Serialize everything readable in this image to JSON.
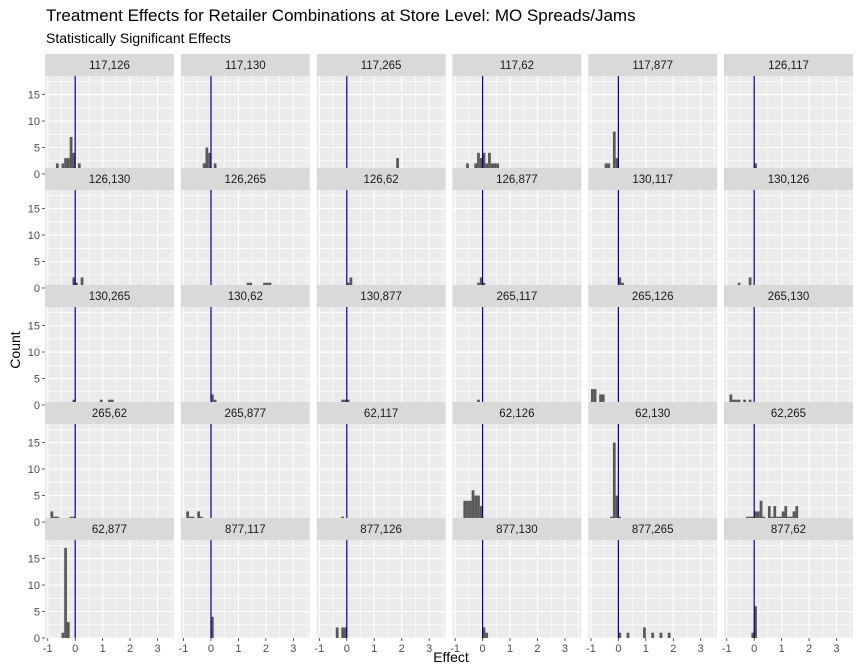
{
  "title": "Treatment Effects for Retailer Combinations at Store Level: MO Spreads/Jams",
  "subtitle": "Statistically Significant Effects",
  "colors": {
    "panel_bg": "#ebebeb",
    "strip_bg": "#d9d9d9",
    "grid": "#ffffff",
    "bar": "#595959",
    "vline": "#00008b"
  },
  "chart_data": {
    "type": "bar",
    "title": "Treatment Effects for Retailer Combinations at Store Level: MO Spreads/Jams",
    "subtitle": "Statistically Significant Effects",
    "xlabel": "Effect",
    "ylabel": "Count",
    "xlim": [
      -1.1,
      3.6
    ],
    "ylim": [
      0,
      18.5
    ],
    "xticks": [
      -1,
      0,
      1,
      2,
      3
    ],
    "yticks": [
      0,
      5,
      10,
      15
    ],
    "grid": true,
    "bin_width": 0.1,
    "reference_line_x": 0,
    "panels": [
      {
        "label": "117,126",
        "bars": [
          [
            -0.65,
            2
          ],
          [
            -0.45,
            2
          ],
          [
            -0.35,
            3
          ],
          [
            -0.25,
            3
          ],
          [
            -0.15,
            7
          ],
          [
            -0.05,
            4
          ],
          [
            0.05,
            1
          ],
          [
            0.15,
            2
          ],
          [
            0.25,
            1
          ],
          [
            0.45,
            1
          ]
        ]
      },
      {
        "label": "117,130",
        "bars": [
          [
            -0.85,
            1
          ],
          [
            -0.45,
            1
          ],
          [
            -0.25,
            2
          ],
          [
            -0.15,
            5
          ],
          [
            -0.05,
            4
          ],
          [
            0.05,
            1
          ],
          [
            0.15,
            2
          ],
          [
            0.25,
            1
          ],
          [
            0.45,
            1
          ],
          [
            0.55,
            1
          ],
          [
            0.75,
            1
          ]
        ]
      },
      {
        "label": "117,265",
        "bars": [
          [
            -0.25,
            1
          ],
          [
            -0.15,
            1
          ],
          [
            0.35,
            1
          ],
          [
            0.75,
            1
          ],
          [
            1.25,
            1
          ],
          [
            1.35,
            1
          ],
          [
            1.75,
            1
          ],
          [
            1.85,
            3
          ],
          [
            1.95,
            1
          ],
          [
            2.45,
            1
          ],
          [
            2.55,
            1
          ],
          [
            2.75,
            1
          ],
          [
            3.35,
            1
          ]
        ]
      },
      {
        "label": "117,62",
        "bars": [
          [
            -0.85,
            1
          ],
          [
            -0.55,
            2
          ],
          [
            -0.25,
            2
          ],
          [
            -0.15,
            4
          ],
          [
            -0.05,
            3
          ],
          [
            0.05,
            4
          ],
          [
            0.15,
            2
          ],
          [
            0.25,
            4
          ],
          [
            0.35,
            2
          ],
          [
            0.45,
            2
          ],
          [
            0.55,
            2
          ],
          [
            0.65,
            1
          ]
        ]
      },
      {
        "label": "117,877",
        "bars": [
          [
            -0.85,
            1
          ],
          [
            -0.75,
            1
          ],
          [
            -0.65,
            1
          ],
          [
            -0.55,
            1
          ],
          [
            -0.45,
            2
          ],
          [
            -0.35,
            2
          ],
          [
            -0.25,
            1
          ],
          [
            -0.15,
            8
          ],
          [
            -0.05,
            3
          ],
          [
            0.05,
            1
          ],
          [
            0.25,
            1
          ],
          [
            0.35,
            1
          ]
        ]
      },
      {
        "label": "126,117",
        "bars": [
          [
            0.05,
            2
          ],
          [
            0.15,
            1
          ]
        ]
      },
      {
        "label": "126,130",
        "bars": [
          [
            -0.05,
            2
          ],
          [
            0.05,
            1
          ],
          [
            0.25,
            2
          ]
        ]
      },
      {
        "label": "126,265",
        "bars": [
          [
            1.35,
            1
          ],
          [
            1.45,
            1
          ],
          [
            1.95,
            1
          ],
          [
            2.05,
            1
          ],
          [
            2.15,
            1
          ]
        ]
      },
      {
        "label": "126,62",
        "bars": [
          [
            0.05,
            1
          ],
          [
            0.15,
            2
          ]
        ]
      },
      {
        "label": "126,877",
        "bars": [
          [
            -0.15,
            1
          ],
          [
            -0.05,
            2
          ],
          [
            0.05,
            1
          ]
        ]
      },
      {
        "label": "130,117",
        "bars": [
          [
            0.05,
            2
          ],
          [
            0.15,
            1
          ]
        ]
      },
      {
        "label": "130,126",
        "bars": [
          [
            -0.55,
            1
          ],
          [
            -0.15,
            2
          ]
        ]
      },
      {
        "label": "130,265",
        "bars": [
          [
            -0.05,
            1
          ],
          [
            0.95,
            1
          ],
          [
            1.25,
            1
          ],
          [
            1.35,
            1
          ]
        ]
      },
      {
        "label": "130,62",
        "bars": [
          [
            0.05,
            2
          ],
          [
            0.15,
            1
          ]
        ]
      },
      {
        "label": "130,877",
        "bars": [
          [
            -0.15,
            1
          ],
          [
            -0.05,
            1
          ],
          [
            0.05,
            1
          ]
        ]
      },
      {
        "label": "265,117",
        "bars": [
          [
            -0.15,
            1
          ]
        ]
      },
      {
        "label": "265,126",
        "bars": [
          [
            -0.95,
            3
          ],
          [
            -0.85,
            3
          ],
          [
            -0.65,
            2
          ],
          [
            -0.55,
            2
          ]
        ]
      },
      {
        "label": "265,130",
        "bars": [
          [
            -0.85,
            2
          ],
          [
            -0.75,
            1
          ],
          [
            -0.65,
            1
          ],
          [
            -0.55,
            1
          ],
          [
            -0.35,
            1
          ],
          [
            -0.15,
            1
          ]
        ]
      },
      {
        "label": "265,62",
        "bars": [
          [
            -0.85,
            2
          ],
          [
            -0.75,
            1
          ],
          [
            -0.65,
            1
          ],
          [
            -0.15,
            1
          ],
          [
            -0.05,
            1
          ]
        ]
      },
      {
        "label": "265,877",
        "bars": [
          [
            -0.85,
            2
          ],
          [
            -0.75,
            1
          ],
          [
            -0.65,
            1
          ],
          [
            -0.45,
            2
          ],
          [
            -0.35,
            1
          ]
        ]
      },
      {
        "label": "62,117",
        "bars": [
          [
            -0.15,
            1
          ]
        ]
      },
      {
        "label": "62,126",
        "bars": [
          [
            -0.65,
            4
          ],
          [
            -0.55,
            4
          ],
          [
            -0.45,
            4
          ],
          [
            -0.35,
            6
          ],
          [
            -0.25,
            5
          ],
          [
            -0.15,
            5
          ],
          [
            -0.05,
            3
          ]
        ]
      },
      {
        "label": "62,130",
        "bars": [
          [
            -0.25,
            1
          ],
          [
            -0.15,
            15
          ],
          [
            -0.05,
            5
          ],
          [
            0.05,
            1
          ]
        ]
      },
      {
        "label": "62,265",
        "bars": [
          [
            -0.25,
            1
          ],
          [
            -0.15,
            1
          ],
          [
            -0.05,
            1
          ],
          [
            0.05,
            2
          ],
          [
            0.15,
            2
          ],
          [
            0.25,
            4
          ],
          [
            0.35,
            1
          ],
          [
            0.55,
            3
          ],
          [
            0.65,
            1
          ],
          [
            0.75,
            3
          ],
          [
            0.85,
            1
          ],
          [
            0.95,
            1
          ],
          [
            1.05,
            2
          ],
          [
            1.15,
            3
          ],
          [
            1.25,
            1
          ],
          [
            1.35,
            1
          ],
          [
            1.45,
            2
          ],
          [
            1.55,
            3
          ]
        ]
      },
      {
        "label": "62,877",
        "bars": [
          [
            -0.45,
            1
          ],
          [
            -0.35,
            17
          ],
          [
            -0.25,
            3
          ]
        ]
      },
      {
        "label": "877,117",
        "bars": [
          [
            0.05,
            4
          ]
        ]
      },
      {
        "label": "877,126",
        "bars": [
          [
            -0.35,
            2
          ],
          [
            -0.15,
            2
          ],
          [
            -0.05,
            2
          ]
        ]
      },
      {
        "label": "877,130",
        "bars": [
          [
            0.05,
            2
          ],
          [
            0.15,
            1
          ]
        ]
      },
      {
        "label": "877,265",
        "bars": [
          [
            0.05,
            1
          ],
          [
            0.35,
            1
          ],
          [
            0.95,
            2
          ],
          [
            1.25,
            1
          ],
          [
            1.55,
            1
          ],
          [
            1.85,
            1
          ]
        ]
      },
      {
        "label": "877,62",
        "bars": [
          [
            -0.05,
            1
          ],
          [
            0.05,
            6
          ]
        ]
      }
    ]
  }
}
